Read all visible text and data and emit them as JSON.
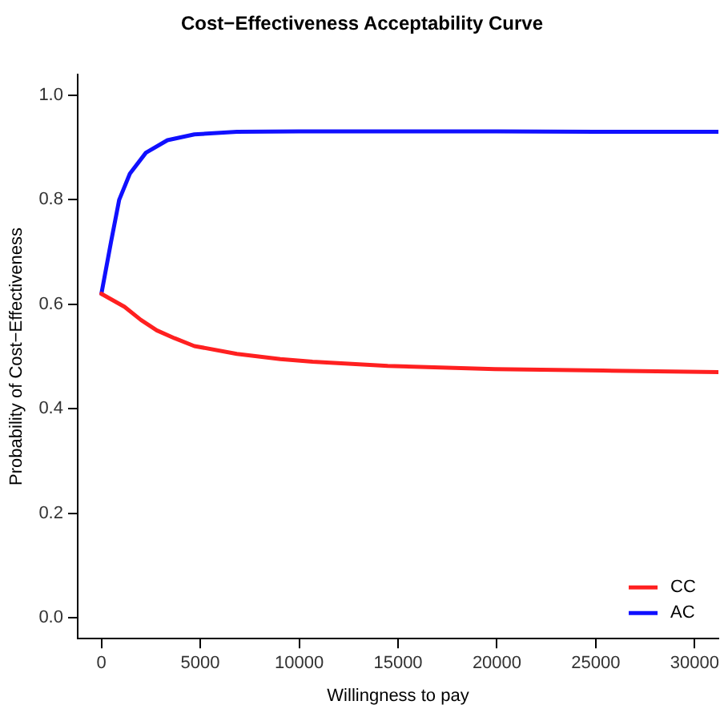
{
  "chart_data": {
    "type": "line",
    "title": "Cost−Effectiveness Acceptability Curve",
    "xlabel": "Willingness to pay",
    "ylabel": "Probability of Cost−Effectiveness",
    "xlim": [
      -1200,
      31200
    ],
    "xticks": [
      0,
      5000,
      10000,
      15000,
      20000,
      25000,
      30000
    ],
    "ylim": [
      -0.04,
      1.04
    ],
    "yticks": [
      {
        "value": 0,
        "label": "0.0"
      },
      {
        "value": 0.2,
        "label": "0.2"
      },
      {
        "value": 0.4,
        "label": "0.4"
      },
      {
        "value": 0.6,
        "label": "0.6"
      },
      {
        "value": 0.8,
        "label": "0.8"
      },
      {
        "value": 1,
        "label": "1.0"
      }
    ],
    "grid": false,
    "legend": "bottom right",
    "marker": "none",
    "line_style": "solid",
    "series": [
      {
        "name": "CC",
        "color": "#ff2020",
        "x": [
          0,
          1170,
          2000,
          2800,
          3700,
          4700,
          6850,
          9050,
          10680,
          14480,
          19900,
          25350,
          31200
        ],
        "values": [
          0.62,
          0.595,
          0.57,
          0.55,
          0.535,
          0.52,
          0.505,
          0.495,
          0.49,
          0.482,
          0.476,
          0.473,
          0.47
        ]
      },
      {
        "name": "AC",
        "color": "#1010ff",
        "x": [
          0,
          490,
          900,
          1440,
          2250,
          3340,
          4700,
          6850,
          10000,
          15000,
          20000,
          25000,
          31200
        ],
        "values": [
          0.62,
          0.72,
          0.8,
          0.85,
          0.89,
          0.914,
          0.925,
          0.93,
          0.931,
          0.931,
          0.931,
          0.93,
          0.93
        ]
      }
    ]
  }
}
